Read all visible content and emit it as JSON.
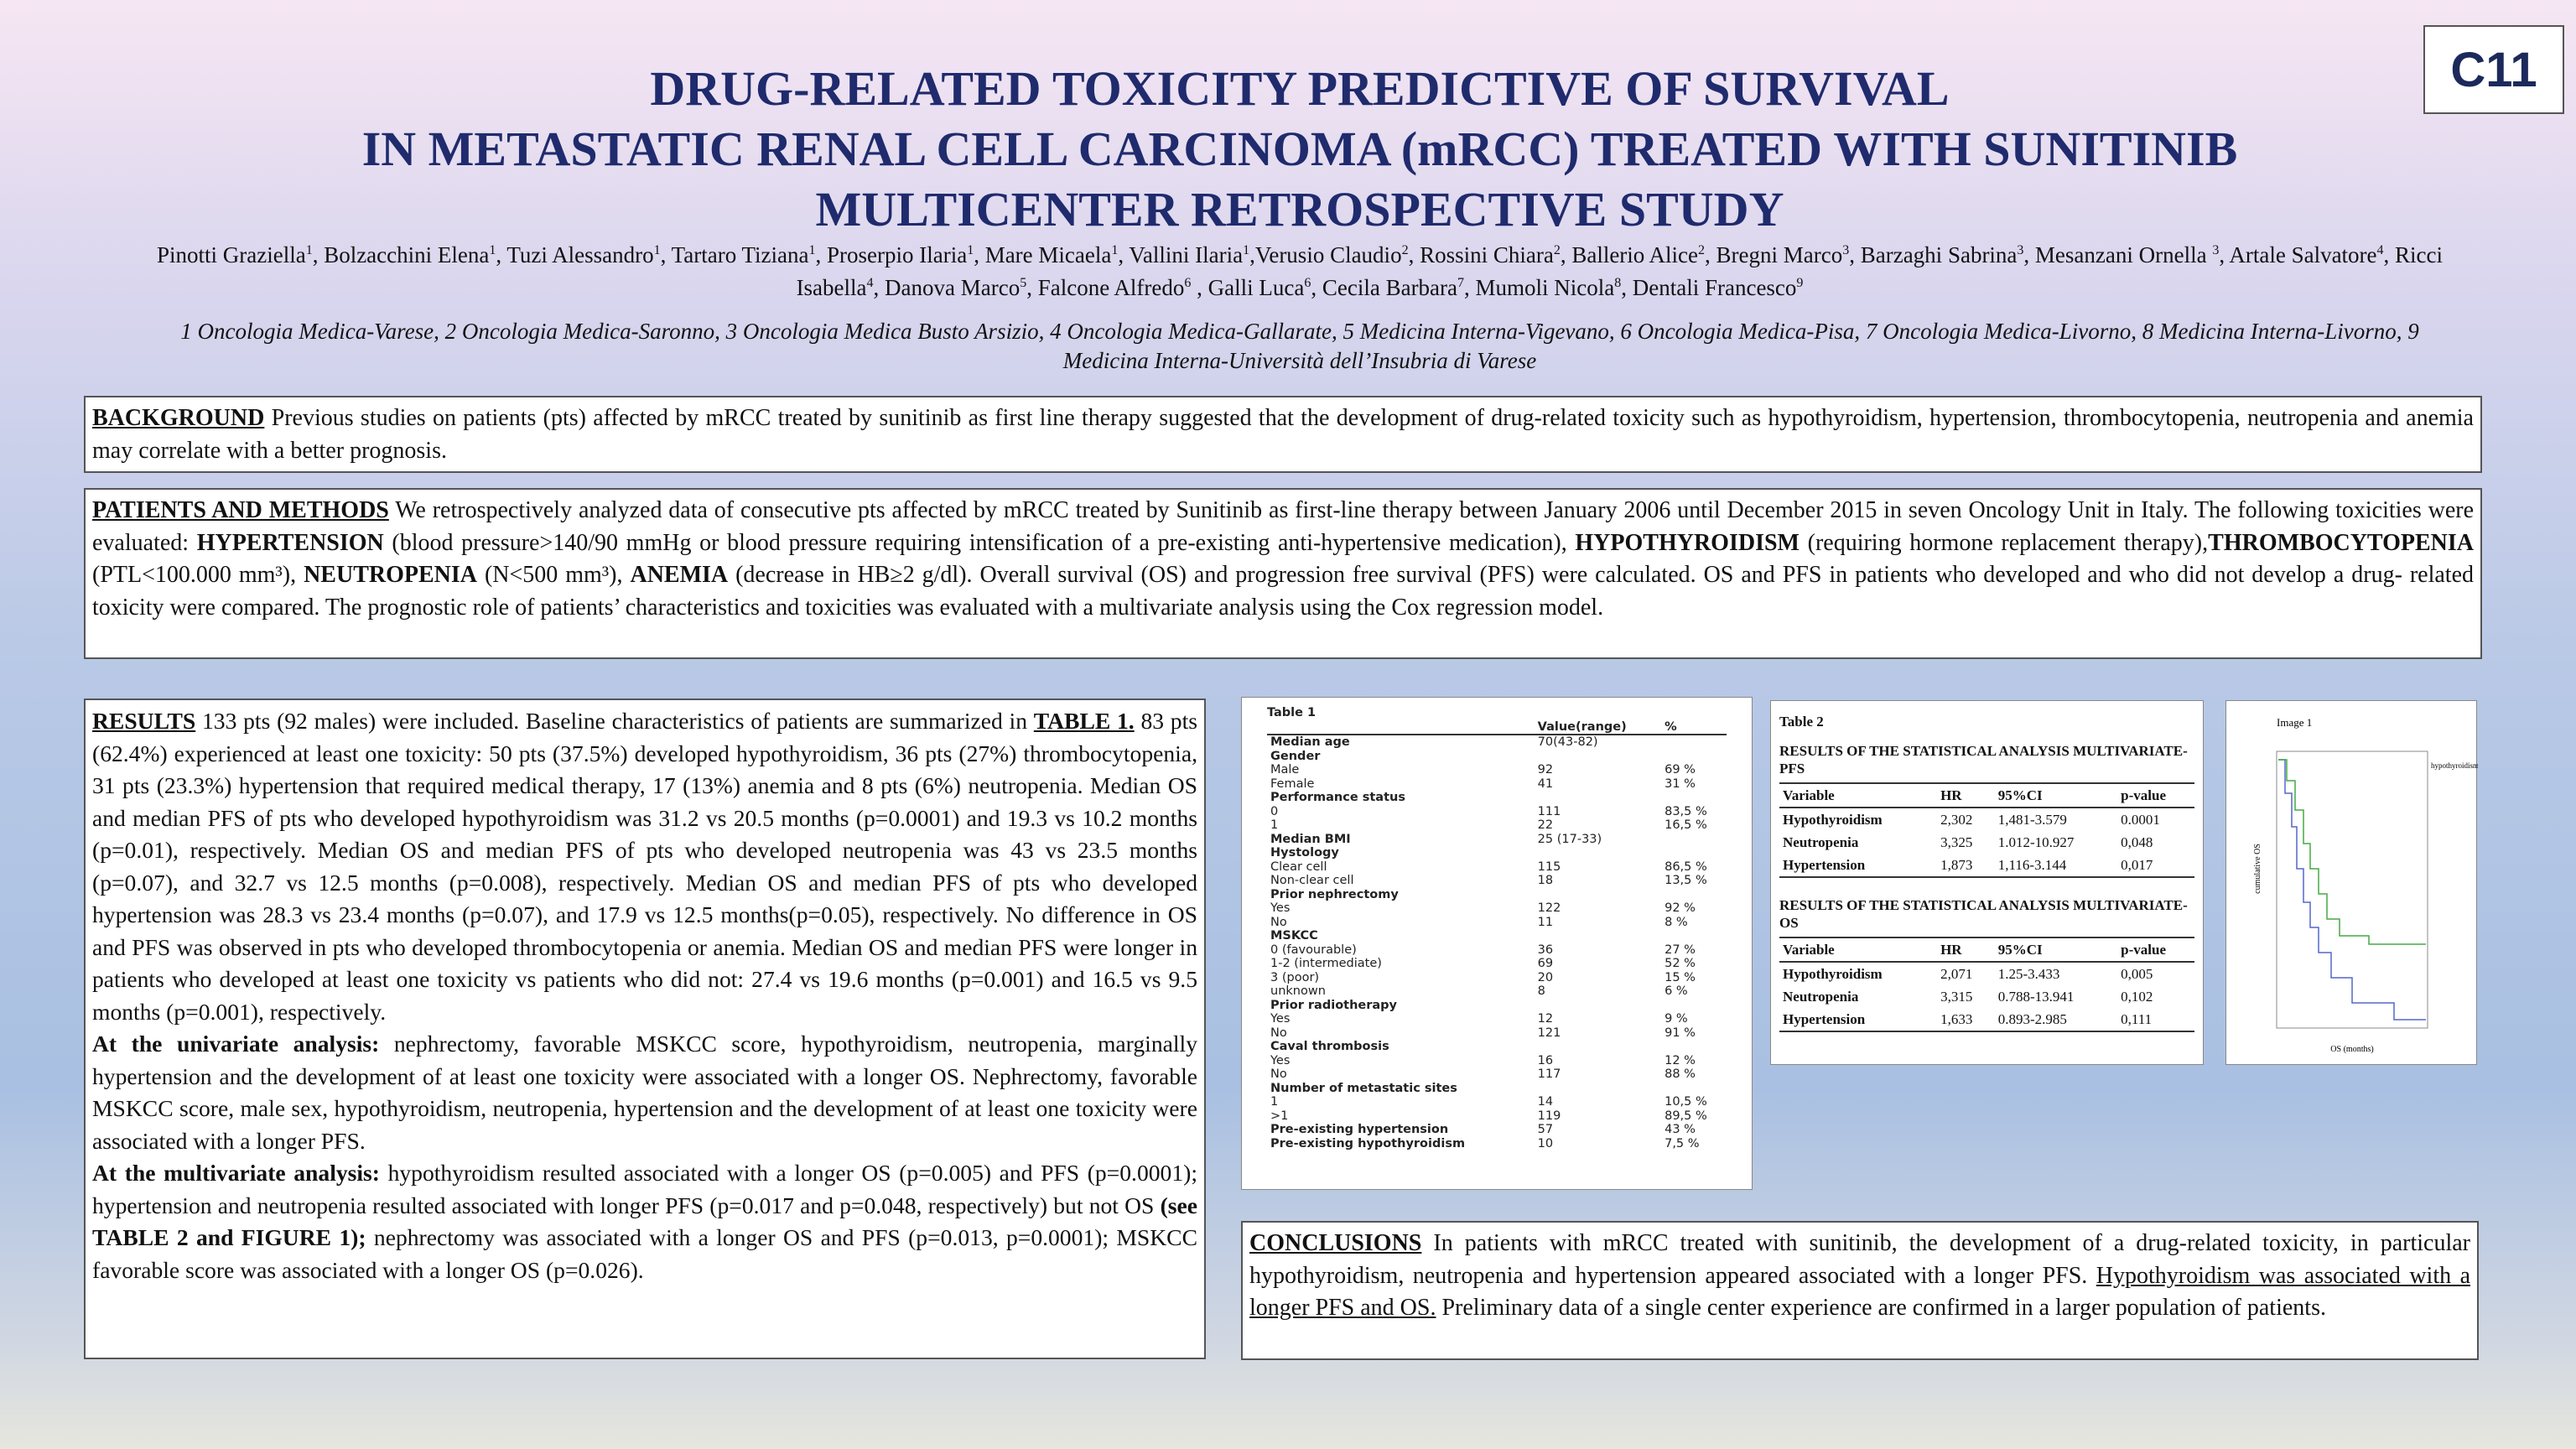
{
  "badge": "C11",
  "title": [
    "DRUG-RELATED TOXICITY PREDICTIVE OF SURVIVAL",
    "IN METASTATIC RENAL CELL CARCINOMA (mRCC) TREATED WITH SUNITINIB",
    "MULTICENTER RETROSPECTIVE STUDY"
  ],
  "authors": [
    {
      "text": "Pinotti Graziella",
      "sup": "1"
    },
    {
      "text": ", Bolzacchini Elena",
      "sup": "1"
    },
    {
      "text": ", Tuzi Alessandro",
      "sup": "1"
    },
    {
      "text": ", Tartaro Tiziana",
      "sup": "1"
    },
    {
      "text": ", Proserpio Ilaria",
      "sup": "1"
    },
    {
      "text": ", Mare Micaela",
      "sup": "1"
    },
    {
      "text": ", Vallini Ilaria",
      "sup": "1"
    },
    {
      "text": ",Verusio Claudio",
      "sup": "2"
    },
    {
      "text": ", Rossini Chiara",
      "sup": "2"
    },
    {
      "text": ", Ballerio Alice",
      "sup": "2"
    },
    {
      "text": ", Bregni Marco",
      "sup": "3"
    },
    {
      "text": ", Barzaghi Sabrina",
      "sup": "3"
    },
    {
      "text": ", Mesanzani Ornella ",
      "sup": "3"
    },
    {
      "text": ", Artale Salvatore",
      "sup": "4"
    },
    {
      "text": ", Ricci Isabella",
      "sup": "4"
    },
    {
      "text": ", Danova Marco",
      "sup": "5"
    },
    {
      "text": ", Falcone Alfredo",
      "sup": "6"
    },
    {
      "text": " , Galli Luca",
      "sup": "6"
    },
    {
      "text": ", Cecila Barbara",
      "sup": "7"
    },
    {
      "text": ", Mumoli Nicola",
      "sup": "8"
    },
    {
      "text": ", Dentali Francesco",
      "sup": "9"
    }
  ],
  "affiliations": "1 Oncologia Medica-Varese, 2  Oncologia Medica-Saronno, 3 Oncologia Medica Busto Arsizio, 4 Oncologia Medica-Gallarate, 5 Medicina Interna-Vigevano, 6 Oncologia Medica-Pisa, 7 Oncologia Medica-Livorno, 8  Medicina Interna-Livorno, 9 Medicina Interna-Università dell’Insubria di Varese",
  "background": {
    "runs": [
      {
        "text": "BACKGROUND",
        "style": "bu"
      },
      {
        "text": " Previous studies on patients (pts) affected by mRCC treated by sunitinib as first line therapy suggested that the development of drug-related toxicity  such as hypothyroidism, hypertension, thrombocytopenia, neutropenia and anemia may correlate with a better prognosis."
      }
    ]
  },
  "methods": {
    "runs": [
      {
        "text": "PATIENTS AND METHODS",
        "style": "bu"
      },
      {
        "text": " We retrospectively analyzed data of consecutive pts affected by mRCC treated by Sunitinib as first-line therapy between January 2006 until December 2015 in seven Oncology Unit in Italy. The following toxicities were evaluated: "
      },
      {
        "text": "HYPERTENSION",
        "style": "b"
      },
      {
        "text": " (blood pressure>140/90 mmHg or blood pressure requiring intensification of a pre-existing anti-hypertensive medication), "
      },
      {
        "text": "HYPOTHYROIDISM",
        "style": "b"
      },
      {
        "text": " (requiring hormone replacement therapy),"
      },
      {
        "text": "THROMBOCYTOPENIA",
        "style": "b"
      },
      {
        "text": " (PTL<100.000 mm³), "
      },
      {
        "text": "NEUTROPENIA",
        "style": "b"
      },
      {
        "text": " (N<500 mm³), "
      },
      {
        "text": "ANEMIA",
        "style": "b"
      },
      {
        "text": " (decrease in HB≥2 g/dl). Overall survival (OS) and progression free survival (PFS) were calculated. OS and PFS in patients who developed and who did not develop a drug- related toxicity were compared. The prognostic role of patients’ characteristics and toxicities was evaluated  with a multivariate analysis using the Cox regression model."
      }
    ]
  },
  "results": {
    "paragraphs": [
      {
        "runs": [
          {
            "text": "RESULTS",
            "style": "bu"
          },
          {
            "text": " 133 pts (92 males) were included. Baseline characteristics of patients are summarized in "
          },
          {
            "text": "TABLE 1.",
            "style": "bu"
          },
          {
            "text": "  83 pts (62.4%) experienced at least one toxicity: 50 pts (37.5%) developed hypothyroidism, 36 pts (27%) thrombocytopenia, 31 pts (23.3%) hypertension that required medical therapy, 17 (13%)  anemia and 8 pts  (6%) neutropenia. Median OS and median PFS of pts who developed hypothyroidism was 31.2 vs 20.5 months (p=0.0001) and 19.3 vs 10.2 months (p=0.01), respectively. Median OS and median PFS of pts who developed neutropenia was 43 vs 23.5 months (p=0.07), and 32.7 vs 12.5 months (p=0.008), respectively. Median OS and median PFS of pts who developed hypertension was 28.3 vs 23.4 months (p=0.07), and 17.9 vs 12.5 months(p=0.05), respectively. No difference in OS and PFS was observed in pts who developed thrombocytopenia or anemia. Median OS and median PFS were longer in patients who developed at least one toxicity vs patients who did not: 27.4 vs 19.6 months (p=0.001) and 16.5 vs 9.5 months (p=0.001), respectively."
          }
        ]
      },
      {
        "runs": [
          {
            "text": "At the univariate analysis:",
            "style": "b"
          },
          {
            "text": " nephrectomy, favorable MSKCC score, hypothyroidism, neutropenia, marginally hypertension and the development of at least one toxicity were associated with a longer OS. Nephrectomy, favorable MSKCC score, male sex, hypothyroidism, neutropenia, hypertension and the development of at least one toxicity were associated with a longer PFS."
          }
        ]
      },
      {
        "runs": [
          {
            "text": "At the multivariate analysis:",
            "style": "b"
          },
          {
            "text": " hypothyroidism resulted associated with a longer OS (p=0.005) and PFS (p=0.0001); hypertension and neutropenia resulted associated with longer PFS (p=0.017 and p=0.048, respectively) but not OS "
          },
          {
            "text": "(see TABLE 2 and FIGURE 1);",
            "style": "b"
          },
          {
            "text": " nephrectomy was associated with a longer OS and PFS (p=0.013, p=0.0001); MSKCC favorable score was associated with a longer OS (p=0.026)."
          }
        ]
      }
    ]
  },
  "table1": {
    "title": "Table 1",
    "header": {
      "value": "Value(range)",
      "pct": "%"
    },
    "rows": [
      {
        "label": "Median age",
        "value": "70(43-82)",
        "bold": true
      },
      {
        "label": "Gender",
        "bold": true
      },
      {
        "label": "Male",
        "value": "92",
        "pct": "69 %"
      },
      {
        "label": "Female",
        "value": "41",
        "pct": "31 %"
      },
      {
        "label": "Performance status",
        "bold": true
      },
      {
        "label": "0",
        "value": "111",
        "pct": "83,5 %"
      },
      {
        "label": "1",
        "value": "22",
        "pct": "16,5 %"
      },
      {
        "label": "Median BMI",
        "value": "25 (17-33)",
        "bold": true
      },
      {
        "label": "Hystology",
        "bold": true
      },
      {
        "label": "Clear cell",
        "value": "115",
        "pct": "86,5 %"
      },
      {
        "label": "Non-clear cell",
        "value": "18",
        "pct": "13,5 %"
      },
      {
        "label": "Prior nephrectomy",
        "bold": true
      },
      {
        "label": "Yes",
        "value": "122",
        "pct": "92 %"
      },
      {
        "label": "No",
        "value": "11",
        "pct": "8 %"
      },
      {
        "label": "MSKCC",
        "bold": true
      },
      {
        "label": "0 (favourable)",
        "value": "36",
        "pct": "27 %"
      },
      {
        "label": "1-2 (intermediate)",
        "value": "69",
        "pct": "52 %"
      },
      {
        "label": "3 (poor)",
        "value": "20",
        "pct": "15 %"
      },
      {
        "label": "unknown",
        "value": "8",
        "pct": "6 %"
      },
      {
        "label": "Prior radiotherapy",
        "bold": true
      },
      {
        "label": "Yes",
        "value": "12",
        "pct": "9 %"
      },
      {
        "label": "No",
        "value": "121",
        "pct": "91 %"
      },
      {
        "label": "Caval thrombosis",
        "bold": true
      },
      {
        "label": "Yes",
        "value": "16",
        "pct": "12 %"
      },
      {
        "label": "No",
        "value": "117",
        "pct": "88 %"
      },
      {
        "label": "Number of metastatic sites",
        "bold": true
      },
      {
        "label": "1",
        "value": "14",
        "pct": "10,5 %"
      },
      {
        "label": ">1",
        "value": "119",
        "pct": "89,5 %"
      },
      {
        "label": "Pre-existing hypertension",
        "value": "57",
        "pct": "43 %",
        "bold": true
      },
      {
        "label": "Pre-existing hypothyroidism",
        "value": "10",
        "pct": "7,5 %",
        "bold": true
      }
    ]
  },
  "table2": {
    "title": "Table 2",
    "sections": [
      {
        "title": "RESULTS OF THE STATISTICAL ANALYSIS MULTIVARIATE-PFS",
        "header": [
          "Variable",
          "HR",
          "95%CI",
          "p-value"
        ],
        "rows": [
          [
            "Hypothyroidism",
            "2,302",
            "1,481-3.579",
            "0.0001"
          ],
          [
            "Neutropenia",
            "3,325",
            "1.012-10.927",
            "0,048"
          ],
          [
            "Hypertension",
            "1,873",
            "1,116-3.144",
            "0,017"
          ]
        ]
      },
      {
        "title": "RESULTS OF THE STATISTICAL ANALYSIS MULTIVARIATE-OS",
        "header": [
          "Variable",
          "HR",
          "95%CI",
          "p-value"
        ],
        "rows": [
          [
            "Hypothyroidism",
            "2,071",
            "1.25-3.433",
            "0,005"
          ],
          [
            "Neutropenia",
            "3,315",
            "0.788-13.941",
            "0,102"
          ],
          [
            "Hypertension",
            "1,633",
            "0.893-2.985",
            "0,111"
          ]
        ]
      }
    ]
  },
  "figure": {
    "title": "Image 1",
    "y_label": "cumulative OS",
    "x_label": "OS (months)",
    "legend": "hypothyroidism"
  },
  "conclusions": {
    "runs": [
      {
        "text": "CONCLUSIONS",
        "style": "bu"
      },
      {
        "text": " In patients with mRCC treated with sunitinib, the development of a drug-related toxicity, in particular hypothyroidism, neutropenia and  hypertension appeared associated with a longer PFS. "
      },
      {
        "text": "Hypothyroidism  was associated with a  longer PFS and OS.",
        "style": "u"
      },
      {
        "text": " Preliminary data of a single center experience are confirmed in a larger population of patients."
      }
    ]
  }
}
